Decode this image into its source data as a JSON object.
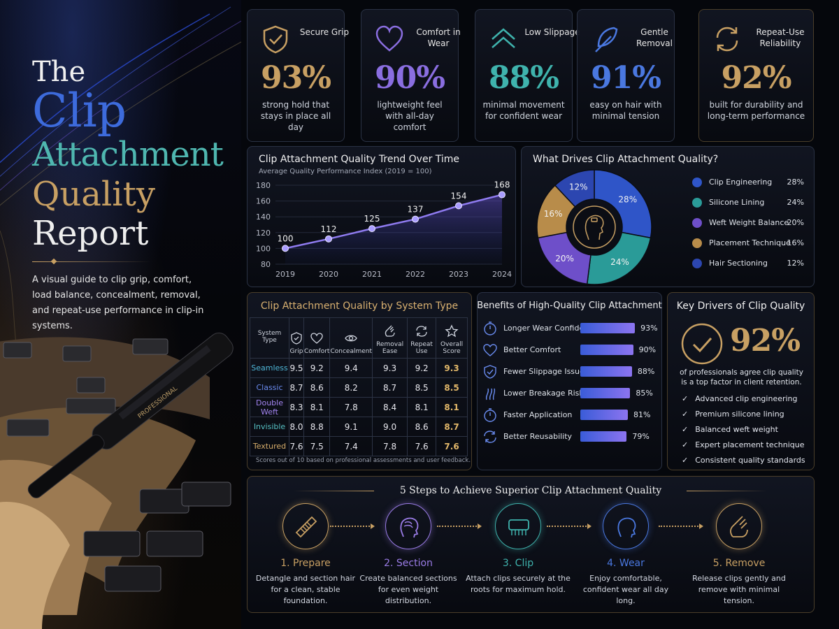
{
  "hero": {
    "title_line1": "The",
    "title_line2": "Clip",
    "title_line3": "Attachment",
    "title_line4": "Quality",
    "title_line5": "Report",
    "intro": "A visual guide to clip grip, comfort, load balance, concealment, removal, and repeat-use performance in clip-in systems.",
    "brush_label": "PROFESSIONAL"
  },
  "kpis": [
    {
      "label": "Secure Grip",
      "value": "93%",
      "desc": "strong hold that stays in place all day",
      "color": "#c8a063",
      "icon": "shield-check-icon"
    },
    {
      "label": "Comfort in Wear",
      "value": "90%",
      "desc": "lightweight feel with all-day comfort",
      "color": "#8a6ee0",
      "icon": "heart-icon"
    },
    {
      "label": "Low Slippage",
      "value": "88%",
      "desc": "minimal movement for confident wear",
      "color": "#3fb3ad",
      "icon": "double-chevron-up-icon"
    },
    {
      "label": "Gentle Removal",
      "value": "91%",
      "desc": "easy on hair with minimal tension",
      "color": "#4a78e0",
      "icon": "feather-icon"
    },
    {
      "label": "Repeat-Use Reliability",
      "value": "92%",
      "desc": "built for durability and long-term performance",
      "color": "#c8a063",
      "icon": "cycle-arrows-icon"
    }
  ],
  "trend": {
    "title": "Clip Attachment Quality Trend Over Time",
    "subtitle": "Average Quality Performance Index (2019 = 100)"
  },
  "drivers": {
    "title": "What Drives Clip Attachment Quality?"
  },
  "chart_data": [
    {
      "type": "line",
      "title": "Clip Attachment Quality Trend Over Time",
      "subtitle": "Average Quality Performance Index (2019 = 100)",
      "x": [
        "2019",
        "2020",
        "2021",
        "2022",
        "2023",
        "2024"
      ],
      "values": [
        100,
        112,
        125,
        137,
        154,
        168
      ],
      "ylim": [
        80,
        180
      ],
      "yticks": [
        80,
        100,
        120,
        140,
        160,
        180
      ],
      "xlabel": "",
      "ylabel": "",
      "color": "#8f7bf0"
    },
    {
      "type": "pie",
      "title": "What Drives Clip Attachment Quality?",
      "categories": [
        "Clip Engineering",
        "Silicone Lining",
        "Weft Weight Balance",
        "Placement Technique",
        "Hair Sectioning"
      ],
      "values": [
        28,
        24,
        20,
        16,
        12
      ],
      "labels": [
        "28%",
        "24%",
        "20%",
        "16%",
        "12%"
      ],
      "colors": [
        "#2f55c8",
        "#2a9b98",
        "#6e4fc9",
        "#b88c4a",
        "#2c46b0"
      ],
      "legend_position": "right"
    },
    {
      "type": "table",
      "title": "Clip Attachment Quality by System Type",
      "columns": [
        "System Type",
        "Grip",
        "Comfort",
        "Concealment",
        "Removal Ease",
        "Repeat Use",
        "Overall Score"
      ],
      "rows": [
        {
          "name": "Seamless",
          "values": [
            "9.5",
            "9.2",
            "9.4",
            "9.3",
            "9.2",
            "9.3"
          ],
          "color": "#4fb7d8"
        },
        {
          "name": "Classic",
          "values": [
            "8.7",
            "8.6",
            "8.2",
            "8.7",
            "8.5",
            "8.5"
          ],
          "color": "#6a8cf0"
        },
        {
          "name": "Double Weft",
          "values": [
            "8.3",
            "8.1",
            "7.8",
            "8.4",
            "8.1",
            "8.1"
          ],
          "color": "#a284f0"
        },
        {
          "name": "Invisible",
          "values": [
            "8.0",
            "8.8",
            "9.1",
            "9.0",
            "8.6",
            "8.7"
          ],
          "color": "#56c1c4"
        },
        {
          "name": "Textured",
          "values": [
            "7.6",
            "7.5",
            "7.4",
            "7.8",
            "7.6",
            "7.6"
          ],
          "color": "#d6ad6a"
        }
      ],
      "footnote": "Scores out of 10 based on professional assessments and user feedback."
    },
    {
      "type": "bar",
      "title": "Benefits of High-Quality Clip Attachment",
      "categories": [
        "Longer Wear Confidence",
        "Better Comfort",
        "Fewer Slippage Issues",
        "Lower Breakage Risk",
        "Faster Application",
        "Better Reusability"
      ],
      "values": [
        93,
        90,
        88,
        85,
        81,
        79
      ],
      "labels": [
        "93%",
        "90%",
        "88%",
        "85%",
        "81%",
        "79%"
      ],
      "icons": [
        "stopwatch-icon",
        "heart-icon",
        "shield-check-icon",
        "hair-strand-icon",
        "stopwatch-icon",
        "cycle-arrows-icon"
      ],
      "xlim": [
        0,
        100
      ]
    }
  ],
  "key_drivers": {
    "title": "Key Drivers of Clip Quality",
    "value": "92%",
    "caption": "of professionals agree clip quality is a top factor in client retention.",
    "items": [
      "Advanced clip engineering",
      "Premium silicone lining",
      "Balanced weft weight",
      "Expert placement technique",
      "Consistent quality standards"
    ]
  },
  "steps": {
    "title": "5 Steps to Achieve Superior Clip Attachment Quality",
    "items": [
      {
        "title": "1. Prepare",
        "desc": "Detangle and section hair for a clean, stable foundation.",
        "color": "#c8a063",
        "icon": "comb-icon"
      },
      {
        "title": "2. Section",
        "desc": "Create balanced sections for even weight distribution.",
        "color": "#9a7ce6",
        "icon": "head-section-icon"
      },
      {
        "title": "3. Clip",
        "desc": "Attach clips securely at the roots for maximum hold.",
        "color": "#3fb3ad",
        "icon": "hair-clip-icon"
      },
      {
        "title": "4. Wear",
        "desc": "Enjoy comfortable, confident wear all day long.",
        "color": "#4a78e0",
        "icon": "head-profile-icon"
      },
      {
        "title": "5. Remove",
        "desc": "Release clips gently and remove with minimal tension.",
        "color": "#c8a063",
        "icon": "hand-icon"
      }
    ]
  }
}
